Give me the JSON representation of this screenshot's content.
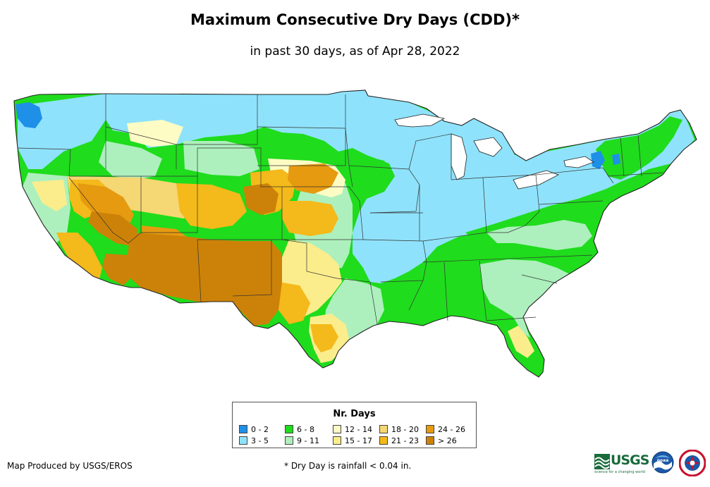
{
  "title": "Maximum Consecutive Dry Days (CDD)*",
  "subtitle": "in past 30 days, as of Apr 28, 2022",
  "legend": {
    "title": "Nr. Days",
    "items": [
      {
        "label": "0 - 2",
        "color": "#1e90e8"
      },
      {
        "label": "3 - 5",
        "color": "#8fe2fb"
      },
      {
        "label": "6 - 8",
        "color": "#1fdc1c"
      },
      {
        "label": "9 - 11",
        "color": "#adf0bd"
      },
      {
        "label": "12 - 14",
        "color": "#fdfcc4"
      },
      {
        "label": "15 - 17",
        "color": "#fbed8c"
      },
      {
        "label": "18 - 20",
        "color": "#f5d773"
      },
      {
        "label": "21 - 23",
        "color": "#f4b91a"
      },
      {
        "label": "24 - 26",
        "color": "#e69a10"
      },
      {
        "label": "> 26",
        "color": "#cc8208"
      }
    ]
  },
  "credit": "Map Produced by USGS/EROS",
  "footnote": "* Dry Day is rainfall < 0.04 in.",
  "logos": {
    "usgs": "USGS",
    "usgs_tagline": "science for a changing world",
    "noaa": "noaa",
    "nws": "NATIONAL WEATHER SERVICE"
  }
}
